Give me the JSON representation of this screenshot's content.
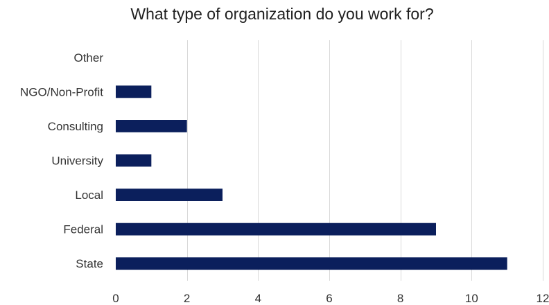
{
  "chart_data": {
    "type": "bar",
    "orientation": "horizontal",
    "title": "What type of organization do you work for?",
    "categories": [
      "State",
      "Federal",
      "Local",
      "University",
      "Consulting",
      "NGO/Non-Profit",
      "Other"
    ],
    "values": [
      11,
      9,
      3,
      1,
      2,
      1,
      0
    ],
    "xlim": [
      0,
      12
    ],
    "x_ticks": [
      0,
      2,
      4,
      6,
      8,
      10,
      12
    ],
    "grid": true,
    "legend": "none",
    "bar_color": "#0b1f5c"
  }
}
